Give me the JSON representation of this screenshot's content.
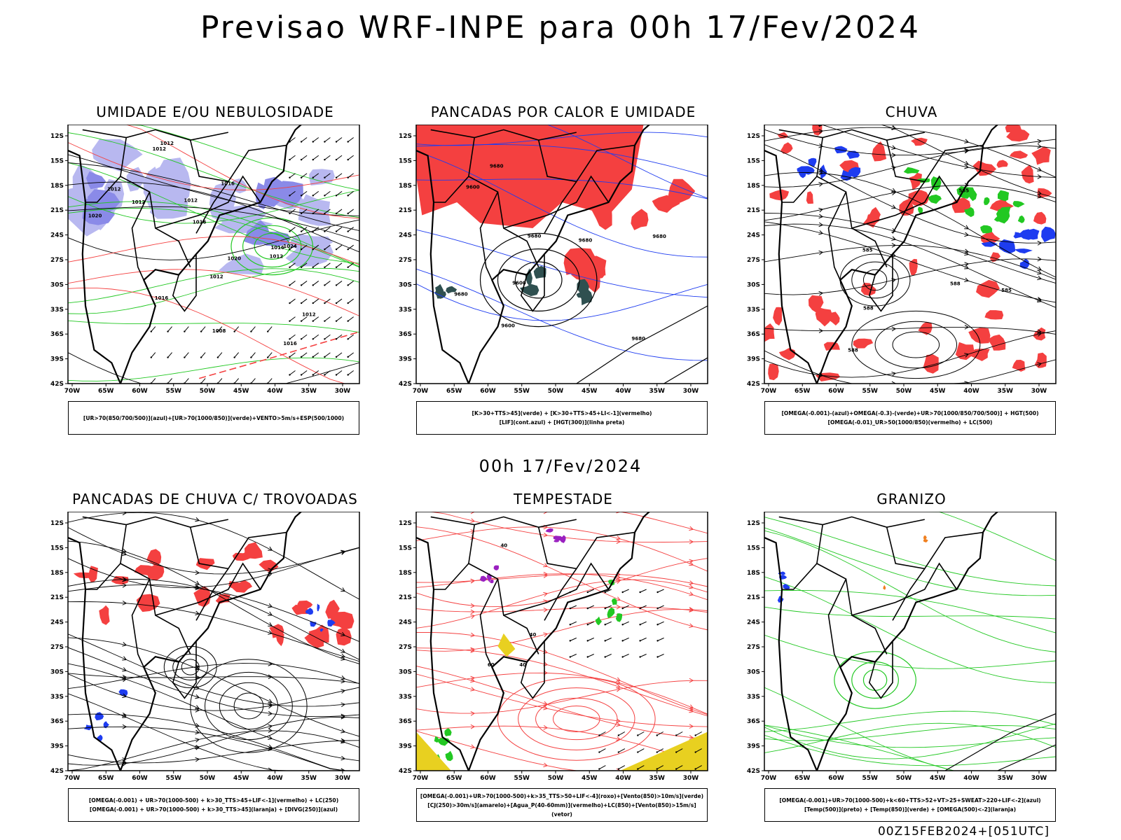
{
  "header": {
    "title": "Previsao WRF-INPE  para 00h 17/Fev/2024",
    "subtitle": "00h 17/Fev/2024",
    "footer": "00Z15FEB2024+[051UTC]"
  },
  "colors": {
    "red": "#f44040",
    "blue": "#1e3cf0",
    "green": "#22c822",
    "lavender": "#b8b8f0",
    "lavender_dark": "#8a8ae8",
    "yellow": "#e8d020",
    "purple": "#9a20c0",
    "orange": "#f08020",
    "teal": "#2f5050"
  },
  "chart_data": [
    {
      "type": "map",
      "title": "UMIDADE E/OU NEBULOSIDADE",
      "legend": [
        "[UR>70(850/700/500)](azul)+[UR>70(1000/850)](verde)+VENTO>5m/s+ESP(500/1000)"
      ],
      "x_ticks": [
        "70W",
        "65W",
        "60W",
        "55W",
        "50W",
        "45W",
        "40W",
        "35W",
        "30W"
      ],
      "y_ticks": [
        "12S",
        "15S",
        "18S",
        "21S",
        "24S",
        "27S",
        "30S",
        "33S",
        "36S",
        "39S",
        "42S"
      ],
      "contour_labels": [
        "1012",
        "1012",
        "1016",
        "1012",
        "1016",
        "1016",
        "1020",
        "1020",
        "1012",
        "1012",
        "1012",
        "1016",
        "1016",
        "1024",
        "1012",
        "1008",
        "1012"
      ]
    },
    {
      "type": "map",
      "title": "PANCADAS POR CALOR E UMIDADE",
      "legend": [
        "[K>30+TTS>45](verde) + [K>30+TTS>45+LI<-1](vermelho)",
        "[LIF](cont.azul) + [HGT(300)](linha preta)"
      ],
      "x_ticks": [
        "70W",
        "65W",
        "60W",
        "55W",
        "50W",
        "45W",
        "40W",
        "35W",
        "30W"
      ],
      "y_ticks": [
        "12S",
        "15S",
        "18S",
        "21S",
        "24S",
        "27S",
        "30S",
        "33S",
        "36S",
        "39S",
        "42S"
      ],
      "contour_labels": [
        "9680",
        "9680",
        "9680",
        "9680",
        "9680",
        "9600",
        "9680",
        "9600",
        "9600"
      ]
    },
    {
      "type": "map",
      "title": "CHUVA",
      "legend": [
        "[OMEGA(-0.001)-(azul)+OMEGA(-0.3)-(verde)+UR>70(1000/850/700/500)] + HGT(500)",
        "[OMEGA(-0.01)_UR>50(1000/850)(vermelho) + LC(500)"
      ],
      "x_ticks": [
        "70W",
        "65W",
        "60W",
        "55W",
        "50W",
        "45W",
        "40W",
        "35W",
        "30W"
      ],
      "y_ticks": [
        "12S",
        "15S",
        "18S",
        "21S",
        "24S",
        "27S",
        "30S",
        "33S",
        "36S",
        "39S",
        "42S"
      ],
      "contour_labels": [
        "588",
        "588",
        "585",
        "588",
        "585",
        "585"
      ]
    },
    {
      "type": "map",
      "title": "PANCADAS DE CHUVA C/ TROVOADAS",
      "legend": [
        "[OMEGA(-0.001) + UR>70(1000-500) + k>30_TTS>45+LIF<-1](vermelho) + LC(250)",
        "[OMEGA(-0.001) + UR>70(1000-500) + k>30_TTS>45](laranja) + [DIVG(250)](azul)"
      ],
      "x_ticks": [
        "70W",
        "65W",
        "60W",
        "55W",
        "50W",
        "45W",
        "40W",
        "35W",
        "30W"
      ],
      "y_ticks": [
        "12S",
        "15S",
        "18S",
        "21S",
        "24S",
        "27S",
        "30S",
        "33S",
        "36S",
        "39S",
        "42S"
      ]
    },
    {
      "type": "map",
      "title": "TEMPESTADE",
      "legend": [
        "[OMEGA(-0.001)+UR>70(1000-500)+k>35_TTS>50+LIF<-4](roxo)+[Vento(850)>10m/s](verde)",
        "[CJ(250)>30m/s](amarelo)+[Agua_P(40-60mm)](vermelho)+LC(850)+[Vento(850)>15m/s](vetor)"
      ],
      "x_ticks": [
        "70W",
        "65W",
        "60W",
        "55W",
        "50W",
        "45W",
        "40W",
        "35W",
        "30W"
      ],
      "y_ticks": [
        "12S",
        "15S",
        "18S",
        "21S",
        "24S",
        "27S",
        "30S",
        "33S",
        "36S",
        "39S",
        "42S"
      ],
      "contour_labels": [
        "40",
        "40",
        "60",
        "40"
      ]
    },
    {
      "type": "map",
      "title": "GRANIZO",
      "legend": [
        "[OMEGA(-0.001)+UR>70(1000-500)+k<60+TTS>52+VT>25+SWEAT>220+LIF<-2](azul)",
        "[Temp(500)](preto) + [Temp(850)](verde) + [OMEGA(500)<-2](laranja)"
      ],
      "x_ticks": [
        "70W",
        "65W",
        "60W",
        "55W",
        "50W",
        "45W",
        "40W",
        "35W",
        "30W"
      ],
      "y_ticks": [
        "12S",
        "15S",
        "18S",
        "21S",
        "24S",
        "27S",
        "30S",
        "33S",
        "36S",
        "39S",
        "42S"
      ]
    }
  ]
}
